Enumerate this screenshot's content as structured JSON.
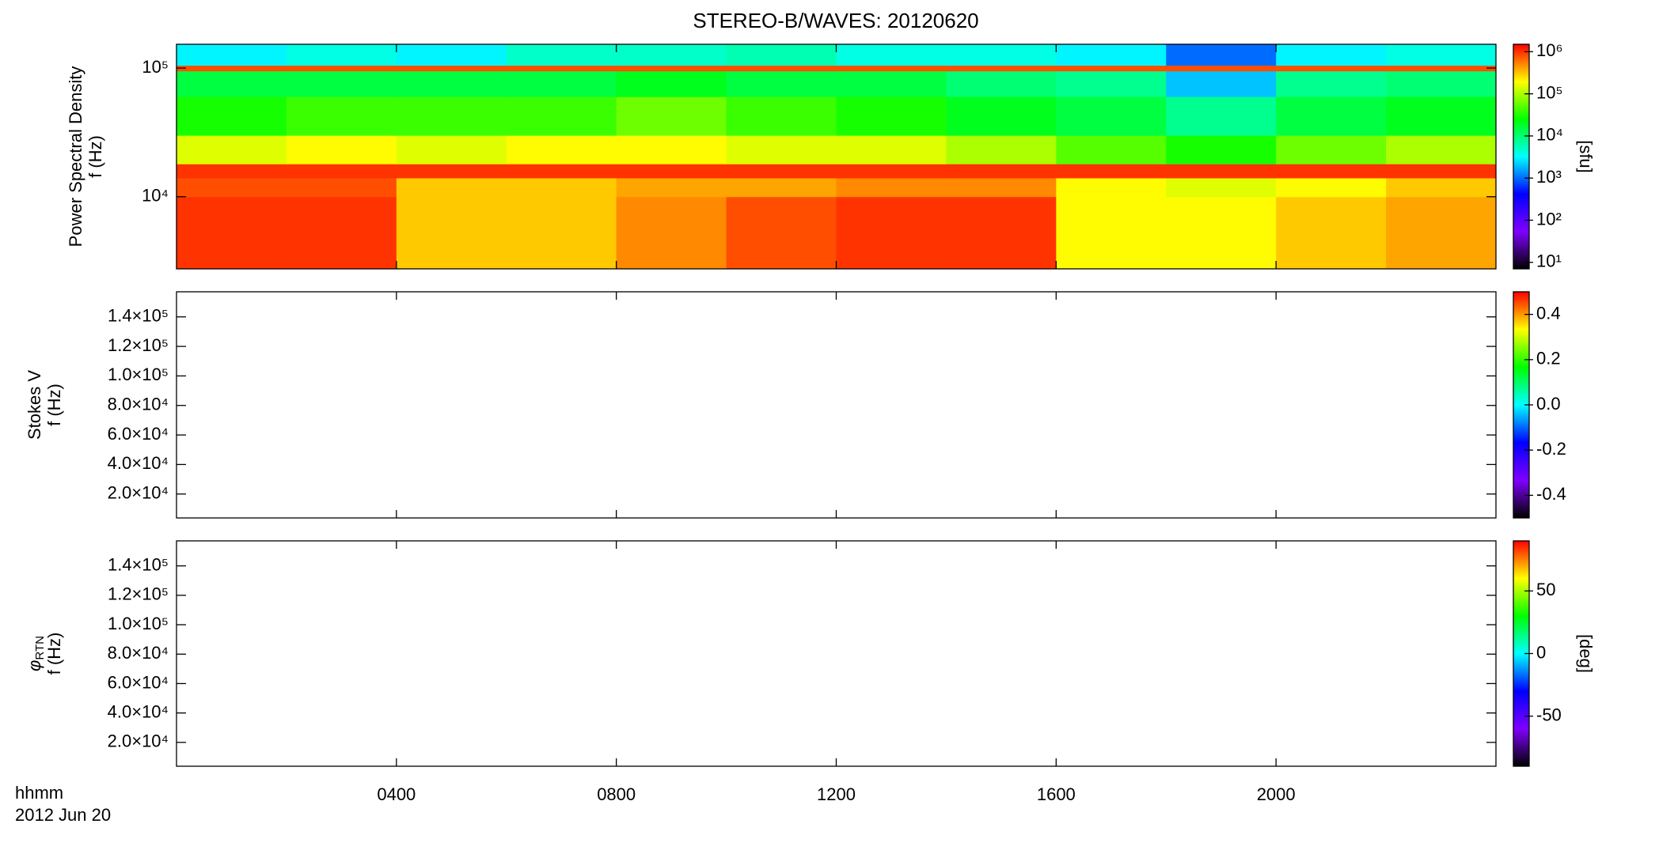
{
  "title": "STEREO-B/WAVES: 20120620",
  "x_label": "hhmm",
  "date_label": "2012 Jun 20",
  "chart_data": [
    {
      "type": "heatmap",
      "ylabel": [
        "Power Spectral Density",
        "f (Hz)"
      ],
      "xlim": [
        0,
        24
      ],
      "xticks": [
        4,
        8,
        12,
        16,
        20
      ],
      "ylim": [
        2750,
        153000
      ],
      "ylog": true,
      "yticks": [
        {
          "value": 10000,
          "label": "10⁴"
        },
        {
          "value": 100000,
          "label": "10⁵"
        }
      ],
      "xbins": [
        0,
        2,
        4,
        6,
        8,
        10,
        12,
        14,
        16,
        18,
        20,
        22,
        24
      ],
      "ybins": [
        2750,
        10000,
        14000,
        18000,
        30000,
        60000,
        95000,
        105000,
        153000
      ],
      "z": [
        [
          1000000,
          1000000,
          300000,
          300000,
          500000,
          800000,
          1000000,
          1000000,
          200000,
          200000,
          300000,
          400000
        ],
        [
          800000,
          800000,
          300000,
          300000,
          400000,
          400000,
          500000,
          500000,
          200000,
          150000,
          200000,
          300000
        ],
        [
          1000000,
          1000000,
          1000000,
          1000000,
          1000000,
          1000000,
          1000000,
          1000000,
          1000000,
          1000000,
          1000000,
          1000000
        ],
        [
          150000,
          200000,
          150000,
          200000,
          200000,
          150000,
          150000,
          100000,
          50000,
          30000,
          60000,
          100000
        ],
        [
          30000,
          40000,
          40000,
          40000,
          60000,
          40000,
          30000,
          20000,
          15000,
          8000,
          15000,
          20000
        ],
        [
          15000,
          15000,
          15000,
          15000,
          20000,
          15000,
          15000,
          10000,
          8000,
          2000,
          8000,
          10000
        ],
        [
          800000,
          800000,
          800000,
          800000,
          800000,
          800000,
          800000,
          800000,
          800000,
          800000,
          800000,
          800000
        ],
        [
          3000,
          4000,
          3000,
          5000,
          5000,
          6000,
          4000,
          4000,
          3000,
          1000,
          3000,
          4000
        ]
      ],
      "zlim": [
        7,
        1500000
      ],
      "zlog": true,
      "zticks": [
        {
          "value": 10,
          "label": "10¹"
        },
        {
          "value": 100,
          "label": "10²"
        },
        {
          "value": 1000,
          "label": "10³"
        },
        {
          "value": 10000,
          "label": "10⁴"
        },
        {
          "value": 100000,
          "label": "10⁵"
        },
        {
          "value": 1000000,
          "label": "10⁶"
        }
      ],
      "zlabel": "[sfu]",
      "colormap": [
        "#000000",
        "#7f00ff",
        "#0000ff",
        "#00ffff",
        "#00ff00",
        "#ffff00",
        "#ff0000"
      ]
    },
    {
      "type": "heatmap",
      "ylabel": [
        "Stokes V",
        "f (Hz)"
      ],
      "xlim": [
        0,
        24
      ],
      "xticks": [
        4,
        8,
        12,
        16,
        20
      ],
      "ylim": [
        3800,
        157000
      ],
      "yticks": [
        {
          "value": 20000,
          "label": "2.0×10⁴"
        },
        {
          "value": 40000,
          "label": "4.0×10⁴"
        },
        {
          "value": 60000,
          "label": "6.0×10⁴"
        },
        {
          "value": 80000,
          "label": "8.0×10⁴"
        },
        {
          "value": 100000,
          "label": "1.0×10⁵"
        },
        {
          "value": 120000,
          "label": "1.2×10⁵"
        },
        {
          "value": 140000,
          "label": "1.4×10⁵"
        }
      ],
      "zlim": [
        -0.5,
        0.5
      ],
      "zticks": [
        -0.4,
        -0.2,
        {
          "value": 0,
          "label": "0.0"
        },
        0.2,
        0.4
      ],
      "colormap": [
        "#000000",
        "#7f00ff",
        "#0000ff",
        "#00ffff",
        "#00ff00",
        "#ffff00",
        "#ff0000"
      ]
    },
    {
      "type": "heatmap",
      "ylabel": [
        {
          "symbol": "φ",
          "subscript": "RTN"
        },
        "f (Hz)"
      ],
      "xlim": [
        0,
        24
      ],
      "xticks": [
        {
          "value": 4,
          "label": "0400"
        },
        {
          "value": 8,
          "label": "0800"
        },
        {
          "value": 12,
          "label": "1200"
        },
        {
          "value": 16,
          "label": "1600"
        },
        {
          "value": 20,
          "label": "2000"
        }
      ],
      "ylim": [
        3800,
        157000
      ],
      "yticks": [
        {
          "value": 20000,
          "label": "2.0×10⁴"
        },
        {
          "value": 40000,
          "label": "4.0×10⁴"
        },
        {
          "value": 60000,
          "label": "6.0×10⁴"
        },
        {
          "value": 80000,
          "label": "8.0×10⁴"
        },
        {
          "value": 100000,
          "label": "1.0×10⁵"
        },
        {
          "value": 120000,
          "label": "1.2×10⁵"
        },
        {
          "value": 140000,
          "label": "1.4×10⁵"
        }
      ],
      "zlim": [
        -90,
        90
      ],
      "zticks": [
        -50,
        0,
        50
      ],
      "zlabel": "[deg]",
      "colormap": [
        "#000000",
        "#7f00ff",
        "#0000ff",
        "#00ffff",
        "#00ff00",
        "#ffff00",
        "#ff0000"
      ]
    }
  ]
}
